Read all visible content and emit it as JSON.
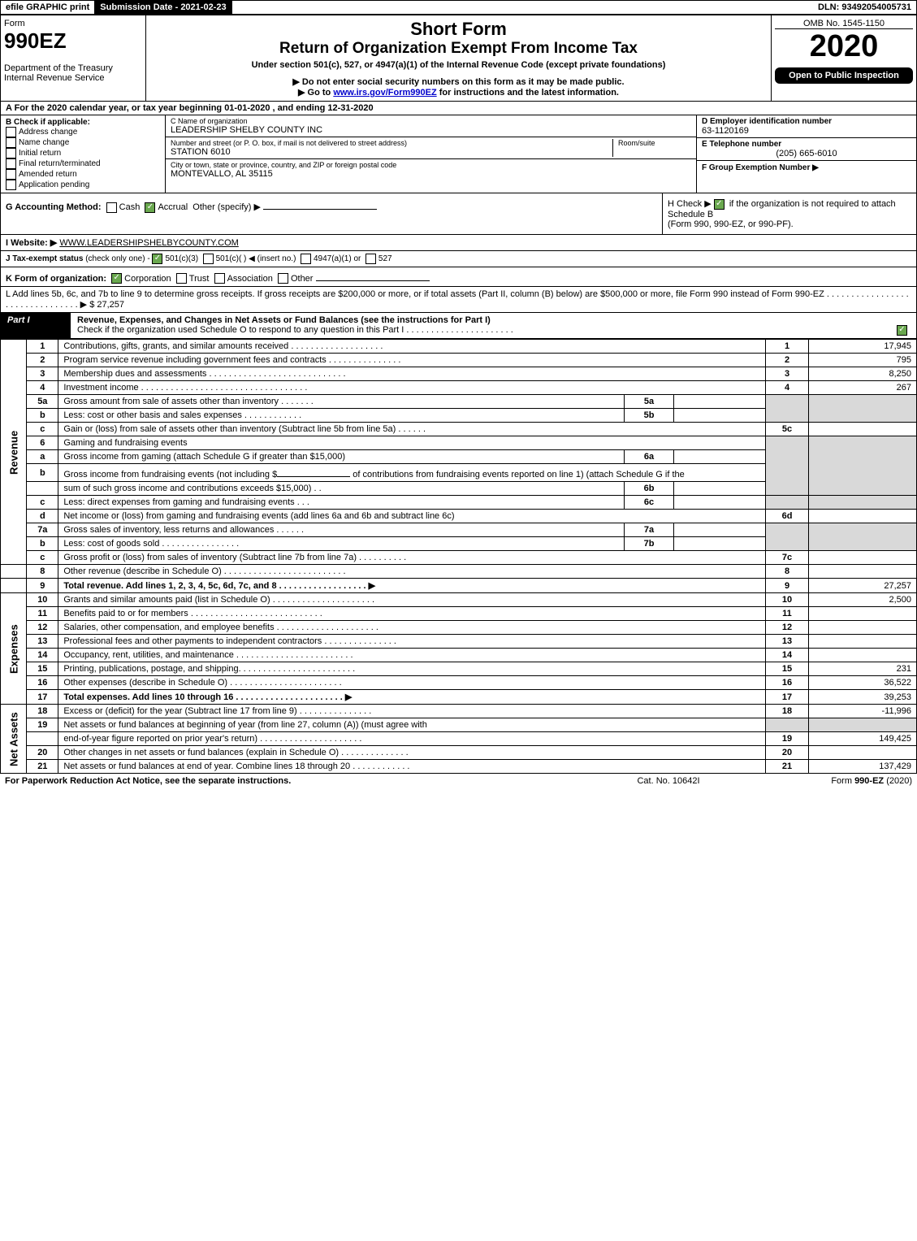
{
  "topbar": {
    "efile": "efile GRAPHIC print",
    "submission_label": "Submission Date - 2021-02-23",
    "dln_label": "DLN: 93492054005731"
  },
  "header": {
    "form_word": "Form",
    "form_num": "990EZ",
    "dept1": "Department of the Treasury",
    "dept2": "Internal Revenue Service",
    "title1": "Short Form",
    "title2": "Return of Organization Exempt From Income Tax",
    "subtitle": "Under section 501(c), 527, or 4947(a)(1) of the Internal Revenue Code (except private foundations)",
    "warn1": "▶ Do not enter social security numbers on this form as it may be made public.",
    "warn2_pre": "▶ Go to ",
    "warn2_link": "www.irs.gov/Form990EZ",
    "warn2_post": " for instructions and the latest information.",
    "omb": "OMB No. 1545-1150",
    "year": "2020",
    "open": "Open to Public Inspection"
  },
  "rowA": "A For the 2020 calendar year, or tax year beginning 01-01-2020 , and ending 12-31-2020",
  "B": {
    "title": "B  Check if applicable:",
    "opts": [
      "Address change",
      "Name change",
      "Initial return",
      "Final return/terminated",
      "Amended return",
      "Application pending"
    ]
  },
  "C": {
    "name_lbl": "C Name of organization",
    "name": "LEADERSHIP SHELBY COUNTY INC",
    "addr_lbl": "Number and street (or P. O. box, if mail is not delivered to street address)",
    "room_lbl": "Room/suite",
    "addr": "STATION 6010",
    "city_lbl": "City or town, state or province, country, and ZIP or foreign postal code",
    "city": "MONTEVALLO, AL  35115"
  },
  "D": {
    "lbl": "D Employer identification number",
    "val": "63-1120169"
  },
  "E": {
    "lbl": "E Telephone number",
    "val": "(205) 665-6010"
  },
  "F": {
    "lbl": "F Group Exemption Number  ▶",
    "val": ""
  },
  "G": {
    "lbl": "G Accounting Method:",
    "o1": "Cash",
    "o2": "Accrual",
    "o3": "Other (specify) ▶"
  },
  "H": {
    "pre": "H  Check ▶ ",
    "post": " if the organization is not required to attach Schedule B",
    "sub": "(Form 990, 990-EZ, or 990-PF)."
  },
  "I": {
    "lbl": "I Website: ▶",
    "val": "WWW.LEADERSHIPSHELBYCOUNTY.COM"
  },
  "J": {
    "lbl": "J Tax-exempt status",
    "sub": "(check only one) - ",
    "o1": "501(c)(3)",
    "o2": "501(c)( ) ◀ (insert no.)",
    "o3": "4947(a)(1) or",
    "o4": "527"
  },
  "K": {
    "lbl": "K Form of organization:",
    "o1": "Corporation",
    "o2": "Trust",
    "o3": "Association",
    "o4": "Other"
  },
  "L": {
    "text": "L Add lines 5b, 6c, and 7b to line 9 to determine gross receipts. If gross receipts are $200,000 or more, or if total assets (Part II, column (B) below) are $500,000 or more, file Form 990 instead of Form 990-EZ  .  .  .  .  .  .  .  .  .  .  .  .  .  .  .  .  .  .  .  .  .  .  .  .  .  .  .  .  .  .  .  . ▶ $",
    "val": "27,257"
  },
  "partI": {
    "label": "Part I",
    "title": "Revenue, Expenses, and Changes in Net Assets or Fund Balances (see the instructions for Part I)",
    "check_line": "Check if the organization used Schedule O to respond to any question in this Part I  .  .  .  .  .  .  .  .  .  .  .  .  .  .  .  .  .  .  .  .  .  .",
    "sections": {
      "rev": "Revenue",
      "exp": "Expenses",
      "net": "Net Assets"
    }
  },
  "lines": {
    "l1": {
      "n": "1",
      "d": "Contributions, gifts, grants, and similar amounts received  .  .  .  .  .  .  .  .  .  .  .  .  .  .  .  .  .  .  .",
      "c": "1",
      "v": "17,945"
    },
    "l2": {
      "n": "2",
      "d": "Program service revenue including government fees and contracts  .  .  .  .  .  .  .  .  .  .  .  .  .  .  .",
      "c": "2",
      "v": "795"
    },
    "l3": {
      "n": "3",
      "d": "Membership dues and assessments  .  .  .  .  .  .  .  .  .  .  .  .  .  .  .  .  .  .  .  .  .  .  .  .  .  .  .  .",
      "c": "3",
      "v": "8,250"
    },
    "l4": {
      "n": "4",
      "d": "Investment income  .  .  .  .  .  .  .  .  .  .  .  .  .  .  .  .  .  .  .  .  .  .  .  .  .  .  .  .  .  .  .  .  .  .",
      "c": "4",
      "v": "267"
    },
    "l5a": {
      "n": "5a",
      "d": "Gross amount from sale of assets other than inventory  .  .  .  .  .  .  .",
      "sc": "5a",
      "sv": ""
    },
    "l5b": {
      "n": "b",
      "d": "Less: cost or other basis and sales expenses  .  .  .  .  .  .  .  .  .  .  .  .",
      "sc": "5b",
      "sv": ""
    },
    "l5c": {
      "n": "c",
      "d": "Gain or (loss) from sale of assets other than inventory (Subtract line 5b from line 5a)  .  .  .  .  .  .",
      "c": "5c",
      "v": ""
    },
    "l6": {
      "n": "6",
      "d": "Gaming and fundraising events"
    },
    "l6a": {
      "n": "a",
      "d": "Gross income from gaming (attach Schedule G if greater than $15,000)",
      "sc": "6a",
      "sv": ""
    },
    "l6b": {
      "n": "b",
      "d1": "Gross income from fundraising events (not including $",
      "d2": " of contributions from fundraising events reported on line 1) (attach Schedule G if the",
      "d3": "sum of such gross income and contributions exceeds $15,000)    .  .",
      "sc": "6b",
      "sv": ""
    },
    "l6c": {
      "n": "c",
      "d": "Less: direct expenses from gaming and fundraising events      .  .  .",
      "sc": "6c",
      "sv": ""
    },
    "l6d": {
      "n": "d",
      "d": "Net income or (loss) from gaming and fundraising events (add lines 6a and 6b and subtract line 6c)",
      "c": "6d",
      "v": ""
    },
    "l7a": {
      "n": "7a",
      "d": "Gross sales of inventory, less returns and allowances  .  .  .  .  .  .",
      "sc": "7a",
      "sv": ""
    },
    "l7b": {
      "n": "b",
      "d": "Less: cost of goods sold          .  .  .  .  .  .  .  .  .  .  .  .  .  .  .  .",
      "sc": "7b",
      "sv": ""
    },
    "l7c": {
      "n": "c",
      "d": "Gross profit or (loss) from sales of inventory (Subtract line 7b from line 7a)  .  .  .  .  .  .  .  .  .  .",
      "c": "7c",
      "v": ""
    },
    "l8": {
      "n": "8",
      "d": "Other revenue (describe in Schedule O)  .  .  .  .  .  .  .  .  .  .  .  .  .  .  .  .  .  .  .  .  .  .  .  .  .",
      "c": "8",
      "v": ""
    },
    "l9": {
      "n": "9",
      "d": "Total revenue. Add lines 1, 2, 3, 4, 5c, 6d, 7c, and 8   .  .  .  .  .  .  .  .  .  .  .  .  .  .  .  .  .  . ▶",
      "c": "9",
      "v": "27,257",
      "bold": true
    },
    "l10": {
      "n": "10",
      "d": "Grants and similar amounts paid (list in Schedule O)  .  .  .  .  .  .  .  .  .  .  .  .  .  .  .  .  .  .  .  .  .",
      "c": "10",
      "v": "2,500"
    },
    "l11": {
      "n": "11",
      "d": "Benefits paid to or for members       .  .  .  .  .  .  .  .  .  .  .  .  .  .  .  .  .  .  .  .  .  .  .  .  .  .  .",
      "c": "11",
      "v": ""
    },
    "l12": {
      "n": "12",
      "d": "Salaries, other compensation, and employee benefits  .  .  .  .  .  .  .  .  .  .  .  .  .  .  .  .  .  .  .  .  .",
      "c": "12",
      "v": ""
    },
    "l13": {
      "n": "13",
      "d": "Professional fees and other payments to independent contractors  .  .  .  .  .  .  .  .  .  .  .  .  .  .  .",
      "c": "13",
      "v": ""
    },
    "l14": {
      "n": "14",
      "d": "Occupancy, rent, utilities, and maintenance  .  .  .  .  .  .  .  .  .  .  .  .  .  .  .  .  .  .  .  .  .  .  .  .",
      "c": "14",
      "v": ""
    },
    "l15": {
      "n": "15",
      "d": "Printing, publications, postage, and shipping.  .  .  .  .  .  .  .  .  .  .  .  .  .  .  .  .  .  .  .  .  .  .  .",
      "c": "15",
      "v": "231"
    },
    "l16": {
      "n": "16",
      "d": "Other expenses (describe in Schedule O)       .  .  .  .  .  .  .  .  .  .  .  .  .  .  .  .  .  .  .  .  .  .  .",
      "c": "16",
      "v": "36,522"
    },
    "l17": {
      "n": "17",
      "d": "Total expenses. Add lines 10 through 16     .  .  .  .  .  .  .  .  .  .  .  .  .  .  .  .  .  .  .  .  .  . ▶",
      "c": "17",
      "v": "39,253",
      "bold": true
    },
    "l18": {
      "n": "18",
      "d": "Excess or (deficit) for the year (Subtract line 17 from line 9)        .  .  .  .  .  .  .  .  .  .  .  .  .  .  .",
      "c": "18",
      "v": "-11,996"
    },
    "l19": {
      "n": "19",
      "d": "Net assets or fund balances at beginning of year (from line 27, column (A)) (must agree with",
      "d2": "end-of-year figure reported on prior year's return)  .  .  .  .  .  .  .  .  .  .  .  .  .  .  .  .  .  .  .  .  .",
      "c": "19",
      "v": "149,425"
    },
    "l20": {
      "n": "20",
      "d": "Other changes in net assets or fund balances (explain in Schedule O)  .  .  .  .  .  .  .  .  .  .  .  .  .  .",
      "c": "20",
      "v": ""
    },
    "l21": {
      "n": "21",
      "d": "Net assets or fund balances at end of year. Combine lines 18 through 20  .  .  .  .  .  .  .  .  .  .  .  .",
      "c": "21",
      "v": "137,429"
    }
  },
  "footer": {
    "left": "For Paperwork Reduction Act Notice, see the separate instructions.",
    "mid": "Cat. No. 10642I",
    "right": "Form 990-EZ (2020)"
  }
}
